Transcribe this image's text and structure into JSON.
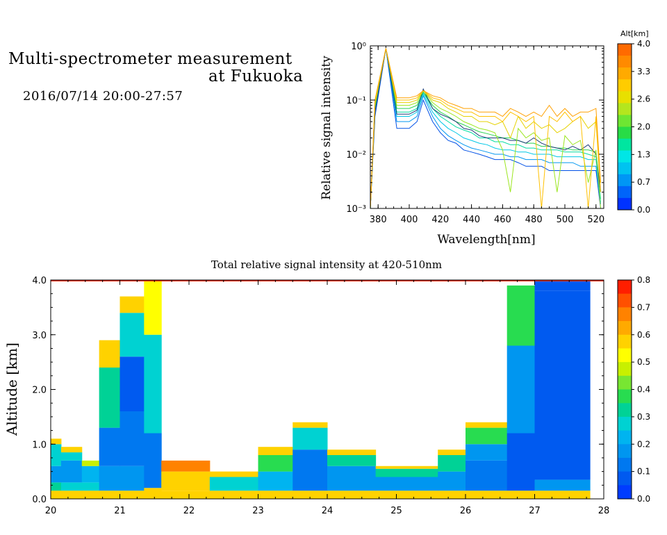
{
  "header": {
    "title_line1": "Multi-spectrometer measurement",
    "title_line2": "at Fukuoka",
    "datetime": "2016/07/14 20:00-27:57"
  },
  "chart_data": [
    {
      "type": "line",
      "xlabel": "Wavelength[nm]",
      "ylabel": "Relative signal intensity",
      "x_ticks": [
        380,
        400,
        420,
        440,
        460,
        480,
        500,
        520
      ],
      "xlim": [
        375,
        525
      ],
      "y_scale": "log",
      "y_ticks": [
        "10⁻³",
        "10⁻²",
        "10⁻¹",
        "10⁰"
      ],
      "ylim": [
        0.001,
        1
      ],
      "colorbar": {
        "label": "Alt[km]",
        "ticks": [
          "4.0",
          "3.3",
          "2.6",
          "2.0",
          "1.3",
          "0.7",
          "0.0"
        ],
        "colors": [
          "#ff6a00",
          "#ff8a00",
          "#ffaa00",
          "#ffcc00",
          "#e8e000",
          "#b4e61e",
          "#6ee632",
          "#28dc46",
          "#00e6a0",
          "#00e6e6",
          "#00c3f0",
          "#0096f5",
          "#0064fa",
          "#0032ff"
        ]
      },
      "x": [
        375,
        378,
        385,
        392,
        400,
        405,
        409,
        415,
        420,
        425,
        430,
        435,
        440,
        445,
        450,
        455,
        460,
        465,
        470,
        475,
        480,
        485,
        490,
        495,
        500,
        505,
        510,
        515,
        520,
        523
      ],
      "series": [
        {
          "color": "#0050e6",
          "values": [
            0.001,
            0.05,
            0.9,
            0.03,
            0.03,
            0.04,
            0.1,
            0.04,
            0.025,
            0.018,
            0.016,
            0.012,
            0.011,
            0.01,
            0.009,
            0.008,
            0.008,
            0.008,
            0.007,
            0.006,
            0.006,
            0.006,
            0.005,
            0.005,
            0.005,
            0.005,
            0.005,
            0.005,
            0.005,
            0.001
          ]
        },
        {
          "color": "#0096f0",
          "values": [
            0.001,
            0.06,
            0.9,
            0.04,
            0.04,
            0.05,
            0.12,
            0.05,
            0.03,
            0.022,
            0.018,
            0.015,
            0.013,
            0.012,
            0.011,
            0.01,
            0.01,
            0.009,
            0.009,
            0.008,
            0.008,
            0.008,
            0.007,
            0.007,
            0.007,
            0.007,
            0.006,
            0.006,
            0.006,
            0.0012
          ]
        },
        {
          "color": "#00c8e6",
          "values": [
            0.001,
            0.07,
            0.9,
            0.05,
            0.05,
            0.06,
            0.13,
            0.06,
            0.04,
            0.03,
            0.025,
            0.02,
            0.018,
            0.016,
            0.015,
            0.013,
            0.012,
            0.012,
            0.011,
            0.011,
            0.01,
            0.01,
            0.01,
            0.009,
            0.009,
            0.009,
            0.009,
            0.008,
            0.008,
            0.0013
          ]
        },
        {
          "color": "#00dca0",
          "values": [
            0.001,
            0.07,
            0.9,
            0.06,
            0.06,
            0.07,
            0.14,
            0.07,
            0.05,
            0.04,
            0.032,
            0.028,
            0.025,
            0.02,
            0.02,
            0.017,
            0.017,
            0.015,
            0.015,
            0.013,
            0.013,
            0.012,
            0.012,
            0.012,
            0.011,
            0.011,
            0.011,
            0.01,
            0.009,
            0.0015
          ]
        },
        {
          "color": "#28d250",
          "values": [
            0.001,
            0.08,
            0.9,
            0.07,
            0.07,
            0.08,
            0.14,
            0.08,
            0.06,
            0.05,
            0.04,
            0.035,
            0.03,
            0.026,
            0.024,
            0.022,
            0.02,
            0.02,
            0.018,
            0.016,
            0.016,
            0.014,
            0.014,
            0.013,
            0.013,
            0.012,
            0.012,
            0.012,
            0.011,
            0.002
          ]
        },
        {
          "color": "#1e3c78",
          "values": [
            0.001,
            0.06,
            0.9,
            0.055,
            0.055,
            0.065,
            0.16,
            0.07,
            0.055,
            0.048,
            0.04,
            0.03,
            0.028,
            0.022,
            0.02,
            0.02,
            0.02,
            0.018,
            0.018,
            0.016,
            0.02,
            0.016,
            0.014,
            0.013,
            0.012,
            0.014,
            0.012,
            0.015,
            0.01,
            0.002
          ]
        },
        {
          "color": "#9be61e",
          "values": [
            0.001,
            0.08,
            0.9,
            0.08,
            0.08,
            0.09,
            0.15,
            0.09,
            0.07,
            0.06,
            0.05,
            0.04,
            0.035,
            0.03,
            0.028,
            0.025,
            0.012,
            0.002,
            0.03,
            0.02,
            0.025,
            0.018,
            0.02,
            0.002,
            0.022,
            0.015,
            0.018,
            0.003,
            0.012,
            0.001
          ]
        },
        {
          "color": "#e6d200",
          "values": [
            0.001,
            0.09,
            0.9,
            0.09,
            0.09,
            0.1,
            0.15,
            0.1,
            0.09,
            0.07,
            0.06,
            0.05,
            0.05,
            0.04,
            0.04,
            0.035,
            0.04,
            0.02,
            0.05,
            0.03,
            0.04,
            0.03,
            0.035,
            0.025,
            0.03,
            0.04,
            0.05,
            0.03,
            0.04,
            0.002
          ]
        },
        {
          "color": "#ffc000",
          "values": [
            0.001,
            0.09,
            0.9,
            0.1,
            0.1,
            0.11,
            0.15,
            0.11,
            0.1,
            0.08,
            0.07,
            0.06,
            0.06,
            0.05,
            0.05,
            0.05,
            0.04,
            0.06,
            0.05,
            0.04,
            0.05,
            0.001,
            0.05,
            0.04,
            0.06,
            0.04,
            0.05,
            0.001,
            0.05,
            0.002
          ]
        },
        {
          "color": "#ffa000",
          "values": [
            0.001,
            0.1,
            0.9,
            0.11,
            0.11,
            0.12,
            0.15,
            0.12,
            0.11,
            0.09,
            0.08,
            0.07,
            0.07,
            0.06,
            0.06,
            0.06,
            0.05,
            0.07,
            0.06,
            0.05,
            0.06,
            0.05,
            0.08,
            0.05,
            0.07,
            0.05,
            0.06,
            0.06,
            0.07,
            0.003
          ]
        }
      ]
    },
    {
      "type": "heatmap",
      "title": "Total relative signal intensity at 420-510nm",
      "ylabel": "Altitude [km]",
      "x_ticks": [
        "20",
        "21",
        "22",
        "23",
        "24",
        "25",
        "26",
        "27",
        "28"
      ],
      "xlim": [
        20,
        28
      ],
      "y_ticks": [
        "0.0",
        "1.0",
        "2.0",
        "3.0",
        "4.0"
      ],
      "ylim": [
        0,
        4
      ],
      "colorbar": {
        "ticks": [
          "0.8",
          "0.7",
          "0.6",
          "0.5",
          "0.4",
          "0.3",
          "0.2",
          "0.1",
          "0.0"
        ],
        "colors": [
          "#ff1e00",
          "#ff5000",
          "#ff8200",
          "#ffaa00",
          "#ffd200",
          "#ffff00",
          "#c8f000",
          "#78e632",
          "#28dc50",
          "#00d296",
          "#00d2d2",
          "#00b4f0",
          "#0096f0",
          "#0078f0",
          "#005af0",
          "#003cff"
        ]
      },
      "clouds": [
        {
          "x0": 20.0,
          "x1": 20.15,
          "levels": [
            [
              0.0,
              0.15,
              0.6
            ],
            [
              0.15,
              0.3,
              0.35
            ],
            [
              0.3,
              0.6,
              0.2
            ],
            [
              0.6,
              1.0,
              0.28
            ],
            [
              1.0,
              1.1,
              0.6
            ]
          ]
        },
        {
          "x0": 20.15,
          "x1": 20.45,
          "levels": [
            [
              0.0,
              0.15,
              0.6
            ],
            [
              0.15,
              0.3,
              0.3
            ],
            [
              0.3,
              0.7,
              0.18
            ],
            [
              0.7,
              0.85,
              0.3
            ],
            [
              0.85,
              0.95,
              0.6
            ]
          ]
        },
        {
          "x0": 20.45,
          "x1": 20.7,
          "levels": [
            [
              0.0,
              0.15,
              0.6
            ],
            [
              0.15,
              0.3,
              0.3
            ],
            [
              0.3,
              0.6,
              0.22
            ],
            [
              0.6,
              0.7,
              0.5
            ]
          ]
        },
        {
          "x0": 20.7,
          "x1": 21.0,
          "levels": [
            [
              0.0,
              0.15,
              0.6
            ],
            [
              0.15,
              0.6,
              0.2
            ],
            [
              0.6,
              1.3,
              0.15
            ],
            [
              1.3,
              2.4,
              0.35
            ],
            [
              2.4,
              2.9,
              0.6
            ]
          ]
        },
        {
          "x0": 21.0,
          "x1": 21.35,
          "levels": [
            [
              0.0,
              0.15,
              0.6
            ],
            [
              0.15,
              0.6,
              0.18
            ],
            [
              0.6,
              1.6,
              0.12
            ],
            [
              1.6,
              2.6,
              0.1
            ],
            [
              2.6,
              3.4,
              0.3
            ],
            [
              3.4,
              3.7,
              0.6
            ]
          ]
        },
        {
          "x0": 21.35,
          "x1": 21.6,
          "levels": [
            [
              0.0,
              0.2,
              0.6
            ],
            [
              0.2,
              1.2,
              0.15
            ],
            [
              1.2,
              3.0,
              0.3
            ],
            [
              3.0,
              4.0,
              0.55
            ]
          ]
        },
        {
          "x0": 21.6,
          "x1": 22.3,
          "levels": [
            [
              0.0,
              0.15,
              0.6
            ],
            [
              0.15,
              0.5,
              0.6
            ],
            [
              0.5,
              0.7,
              0.7
            ]
          ]
        },
        {
          "x0": 22.3,
          "x1": 23.0,
          "levels": [
            [
              0.0,
              0.15,
              0.6
            ],
            [
              0.15,
              0.4,
              0.3
            ],
            [
              0.4,
              0.5,
              0.6
            ]
          ]
        },
        {
          "x0": 23.0,
          "x1": 23.5,
          "levels": [
            [
              0.0,
              0.15,
              0.6
            ],
            [
              0.15,
              0.5,
              0.22
            ],
            [
              0.5,
              0.8,
              0.4
            ],
            [
              0.8,
              0.95,
              0.6
            ]
          ]
        },
        {
          "x0": 23.5,
          "x1": 24.0,
          "levels": [
            [
              0.0,
              0.15,
              0.6
            ],
            [
              0.15,
              0.9,
              0.15
            ],
            [
              0.9,
              1.3,
              0.3
            ],
            [
              1.3,
              1.4,
              0.6
            ]
          ]
        },
        {
          "x0": 24.0,
          "x1": 24.7,
          "levels": [
            [
              0.0,
              0.15,
              0.6
            ],
            [
              0.15,
              0.6,
              0.18
            ],
            [
              0.6,
              0.8,
              0.35
            ],
            [
              0.8,
              0.9,
              0.6
            ]
          ]
        },
        {
          "x0": 24.7,
          "x1": 25.6,
          "levels": [
            [
              0.0,
              0.15,
              0.6
            ],
            [
              0.15,
              0.4,
              0.2
            ],
            [
              0.4,
              0.55,
              0.35
            ],
            [
              0.55,
              0.6,
              0.6
            ]
          ]
        },
        {
          "x0": 25.6,
          "x1": 26.0,
          "levels": [
            [
              0.0,
              0.15,
              0.6
            ],
            [
              0.15,
              0.5,
              0.18
            ],
            [
              0.5,
              0.8,
              0.35
            ],
            [
              0.8,
              0.9,
              0.6
            ]
          ]
        },
        {
          "x0": 26.0,
          "x1": 26.6,
          "levels": [
            [
              0.0,
              0.15,
              0.6
            ],
            [
              0.15,
              0.7,
              0.12
            ],
            [
              0.7,
              1.0,
              0.2
            ],
            [
              1.0,
              1.3,
              0.4
            ],
            [
              1.3,
              1.4,
              0.6
            ]
          ]
        },
        {
          "x0": 26.6,
          "x1": 27.0,
          "levels": [
            [
              0.0,
              0.15,
              0.6
            ],
            [
              0.15,
              1.2,
              0.1
            ],
            [
              1.2,
              2.8,
              0.2
            ],
            [
              2.8,
              3.9,
              0.4
            ]
          ]
        },
        {
          "x0": 27.0,
          "x1": 27.8,
          "levels": [
            [
              0.0,
              0.15,
              0.6
            ],
            [
              0.15,
              0.35,
              0.2
            ],
            [
              0.35,
              3.8,
              0.06
            ],
            [
              3.8,
              4.0,
              0.08
            ]
          ]
        }
      ]
    }
  ]
}
